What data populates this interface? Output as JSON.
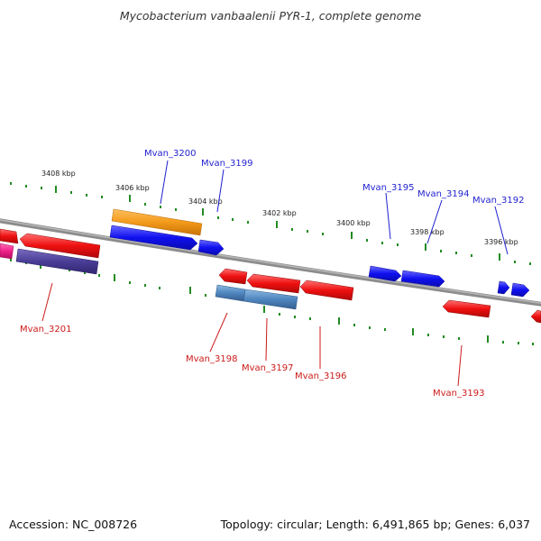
{
  "title": "Mycobacterium vanbaalenii PYR-1, complete genome",
  "footer": {
    "accession": "Accession: NC_008726",
    "topology": "Topology: circular; Length: 6,491,865 bp; Genes: 6,037"
  },
  "colors": {
    "forward_gene": "#1010f0",
    "reverse_gene": "#ee1010",
    "orange_gene": "#f39a1a",
    "purple_gene": "#4a3d96",
    "steelblue_gene": "#4f86bf",
    "pink_gene": "#f0208a",
    "backbone": "#8c8c8c",
    "tick": "#228b22",
    "top_label": "#1f1fd0",
    "bottom_label": "#cc1a1a"
  },
  "scale_ticks": [
    {
      "label": "3408 kbp"
    },
    {
      "label": "3406 kbp"
    },
    {
      "label": "3404 kbp"
    },
    {
      "label": "3402 kbp"
    },
    {
      "label": "3400 kbp"
    },
    {
      "label": "3398 kbp"
    },
    {
      "label": "3396 kbp"
    }
  ],
  "gene_labels_top": [
    {
      "name": "Mvan_3200"
    },
    {
      "name": "Mvan_3199"
    },
    {
      "name": "Mvan_3195"
    },
    {
      "name": "Mvan_3194"
    },
    {
      "name": "Mvan_3192"
    }
  ],
  "gene_labels_bottom": [
    {
      "name": "Mvan_3201"
    },
    {
      "name": "Mvan_3198"
    },
    {
      "name": "Mvan_3197"
    },
    {
      "name": "Mvan_3196"
    },
    {
      "name": "Mvan_3193"
    }
  ]
}
